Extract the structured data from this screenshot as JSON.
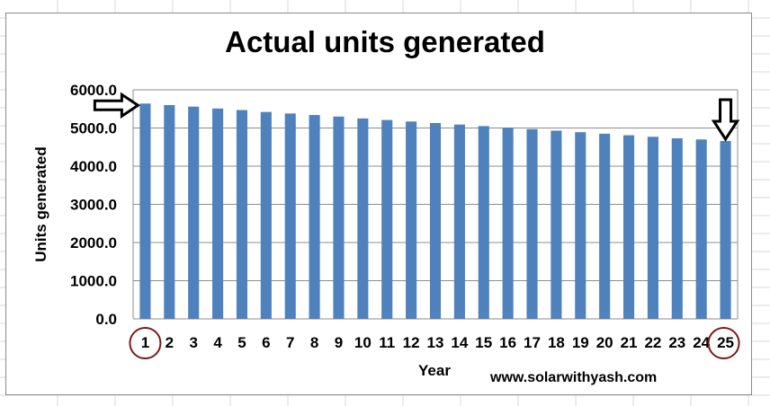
{
  "chart_data": {
    "type": "bar",
    "title": "Actual units generated",
    "xlabel": "Year",
    "ylabel": "Units generated",
    "categories": [
      "1",
      "2",
      "3",
      "4",
      "5",
      "6",
      "7",
      "8",
      "9",
      "10",
      "11",
      "12",
      "13",
      "14",
      "15",
      "16",
      "17",
      "18",
      "19",
      "20",
      "21",
      "22",
      "23",
      "24",
      "25"
    ],
    "series": [
      {
        "values": [
          5640,
          5600,
          5560,
          5510,
          5470,
          5420,
          5380,
          5340,
          5300,
          5250,
          5210,
          5170,
          5130,
          5090,
          5050,
          5010,
          4970,
          4930,
          4890,
          4850,
          4810,
          4770,
          4730,
          4700,
          4660
        ]
      }
    ],
    "y_ticks": [
      "0.0",
      "1000.0",
      "2000.0",
      "3000.0",
      "4000.0",
      "5000.0",
      "6000.0"
    ],
    "ylim": [
      0,
      6000
    ],
    "grid": true,
    "legend": "none",
    "bar_color": "#4f81bd",
    "annotations": [
      {
        "type": "arrow-right",
        "target_category": "1"
      },
      {
        "type": "arrow-down",
        "target_category": "25"
      },
      {
        "type": "circle",
        "target_category": "1",
        "color": "#7b1a1a"
      },
      {
        "type": "circle",
        "target_category": "25",
        "color": "#7b1a1a"
      }
    ]
  },
  "watermark": "www.solarwithyash.com"
}
